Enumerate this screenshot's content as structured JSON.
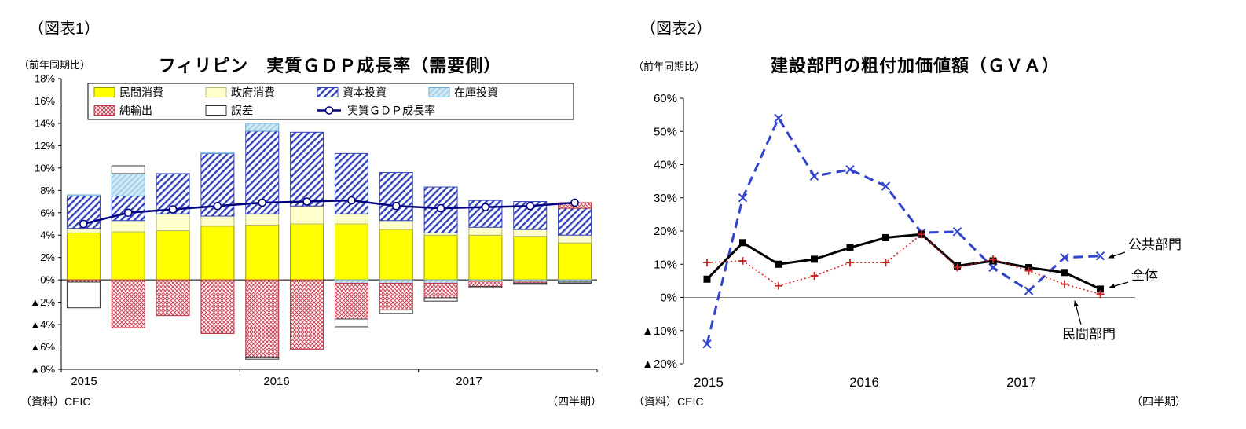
{
  "figure1": {
    "tag": "（図表1）",
    "y_axis_note": "（前年同期比）",
    "title": "フィリピン　実質ＧＤＰ成長率（需要側）",
    "source": "（資料）CEIC",
    "x_axis_note": "（四半期）"
  },
  "figure2": {
    "tag": "（図表2）",
    "y_axis_note": "（前年同期比）",
    "title": "建設部門の粗付加価値額（ＧＶＡ）",
    "source": "（資料）CEIC",
    "x_axis_note": "（四半期）"
  },
  "chart_data": [
    {
      "id": "fig1",
      "type": "bar",
      "stacked": true,
      "title": "フィリピン　実質ＧＤＰ成長率（需要側）",
      "ylabel": "（前年同期比）",
      "xlabel": "（四半期）",
      "ylim": [
        -8,
        18
      ],
      "grid": false,
      "legend_position": "top-inside-box",
      "yticks": [
        {
          "v": 18,
          "label": "18%"
        },
        {
          "v": 16,
          "label": "16%"
        },
        {
          "v": 14,
          "label": "14%"
        },
        {
          "v": 12,
          "label": "12%"
        },
        {
          "v": 10,
          "label": "10%"
        },
        {
          "v": 8,
          "label": "8%"
        },
        {
          "v": 6,
          "label": "6%"
        },
        {
          "v": 4,
          "label": "4%"
        },
        {
          "v": 2,
          "label": "2%"
        },
        {
          "v": 0,
          "label": "0%"
        },
        {
          "v": -2,
          "label": "▲2%"
        },
        {
          "v": -4,
          "label": "▲4%"
        },
        {
          "v": -6,
          "label": "▲6%"
        },
        {
          "v": -8,
          "label": "▲8%"
        }
      ],
      "x_year_labels": [
        "2015",
        "2016",
        "2017"
      ],
      "categories": [
        "2015Q1",
        "2015Q2",
        "2015Q3",
        "2015Q4",
        "2016Q1",
        "2016Q2",
        "2016Q3",
        "2016Q4",
        "2017Q1",
        "2017Q2",
        "2017Q3",
        "2017Q4"
      ],
      "series": [
        {
          "name": "民間消費",
          "key": "private-consumption",
          "fill": "#FFFF00",
          "stroke": "#9a9a00",
          "pattern": null,
          "values": [
            4.2,
            4.3,
            4.4,
            4.8,
            4.9,
            5.0,
            5.0,
            4.5,
            4.0,
            4.0,
            3.9,
            3.3
          ]
        },
        {
          "name": "政府消費",
          "key": "government-consumption",
          "fill": "#FFFFCC",
          "stroke": "#b8b878",
          "pattern": null,
          "values": [
            0.4,
            1.0,
            1.5,
            0.9,
            1.0,
            1.6,
            0.9,
            0.8,
            0.2,
            0.7,
            0.6,
            0.7
          ]
        },
        {
          "name": "資本投資",
          "key": "capital-investment",
          "fill": null,
          "stroke": "#3344BB",
          "pattern": "diag",
          "values": [
            2.9,
            2.2,
            3.6,
            5.6,
            7.4,
            6.6,
            5.4,
            4.3,
            4.1,
            2.4,
            2.5,
            2.4
          ]
        },
        {
          "name": "在庫投資",
          "key": "inventory-investment",
          "fill": null,
          "stroke": "#6FAAD0",
          "pattern": "inv",
          "values": [
            0.1,
            2.0,
            0.0,
            0.1,
            0.7,
            0.0,
            -0.3,
            -0.3,
            -0.3,
            -0.1,
            -0.2,
            -0.2
          ]
        },
        {
          "name": "純輸出",
          "key": "net-exports",
          "fill": null,
          "stroke": "#BB3344",
          "pattern": "cross",
          "values": [
            -0.2,
            -4.3,
            -3.2,
            -4.8,
            -6.9,
            -6.2,
            -3.2,
            -2.4,
            -1.3,
            -0.5,
            -0.1,
            0.5
          ]
        },
        {
          "name": "誤差",
          "key": "statistical-discrepancy",
          "fill": "#FFFFFF",
          "stroke": "#333333",
          "pattern": null,
          "values": [
            -2.3,
            0.7,
            0.0,
            0.0,
            -0.2,
            0.0,
            -0.7,
            -0.3,
            -0.3,
            -0.1,
            -0.1,
            -0.1
          ]
        }
      ],
      "line_series": {
        "name": "実質ＧＤＰ成長率",
        "key": "real-gdp-growth",
        "color": "#000080",
        "values": [
          5.0,
          6.0,
          6.3,
          6.6,
          6.9,
          7.0,
          7.1,
          6.6,
          6.4,
          6.5,
          6.6,
          6.9
        ]
      }
    },
    {
      "id": "fig2",
      "type": "line",
      "title": "建設部門の粗付加価値額（ＧＶＡ）",
      "ylabel": "（前年同期比）",
      "xlabel": "（四半期）",
      "ylim": [
        -20,
        60
      ],
      "grid": false,
      "legend_position": "annotations-right",
      "yticks": [
        {
          "v": 60,
          "label": "60%"
        },
        {
          "v": 50,
          "label": "50%"
        },
        {
          "v": 40,
          "label": "40%"
        },
        {
          "v": 30,
          "label": "30%"
        },
        {
          "v": 20,
          "label": "20%"
        },
        {
          "v": 10,
          "label": "10%"
        },
        {
          "v": 0,
          "label": "0%"
        },
        {
          "v": -10,
          "label": "▲10%"
        },
        {
          "v": -20,
          "label": "▲20%"
        }
      ],
      "x_year_labels": [
        "2015",
        "2016",
        "2017"
      ],
      "categories": [
        "2015Q1",
        "2015Q2",
        "2015Q3",
        "2015Q4",
        "2016Q1",
        "2016Q2",
        "2016Q3",
        "2016Q4",
        "2017Q1",
        "2017Q2",
        "2017Q3",
        "2017Q4"
      ],
      "series": [
        {
          "name": "公共部門",
          "key": "public-sector",
          "color": "#3344CC",
          "dash": "dashed",
          "marker": "x",
          "values": [
            -14,
            30,
            54,
            36.5,
            38.5,
            33.5,
            19.5,
            19.8,
            9,
            2,
            12,
            12.5
          ]
        },
        {
          "name": "全体",
          "key": "total",
          "color": "#000000",
          "dash": "solid",
          "marker": "square",
          "values": [
            5.5,
            16.5,
            10,
            11.5,
            15,
            18,
            19,
            9.5,
            11,
            9,
            7.5,
            2.5
          ]
        },
        {
          "name": "民間部門",
          "key": "private-sector",
          "color": "#CC2222",
          "dash": "dotted",
          "marker": "plus",
          "values": [
            10.5,
            11,
            3.5,
            6.5,
            10.5,
            10.5,
            19,
            9,
            11.5,
            8,
            4,
            1
          ]
        }
      ],
      "annotations": [
        {
          "label": "公共部門",
          "series_key": "public-sector",
          "point": 11
        },
        {
          "label": "全体",
          "series_key": "total",
          "point": 11
        },
        {
          "label": "民間部門",
          "series_key": "private-sector",
          "point": 11
        }
      ]
    }
  ]
}
